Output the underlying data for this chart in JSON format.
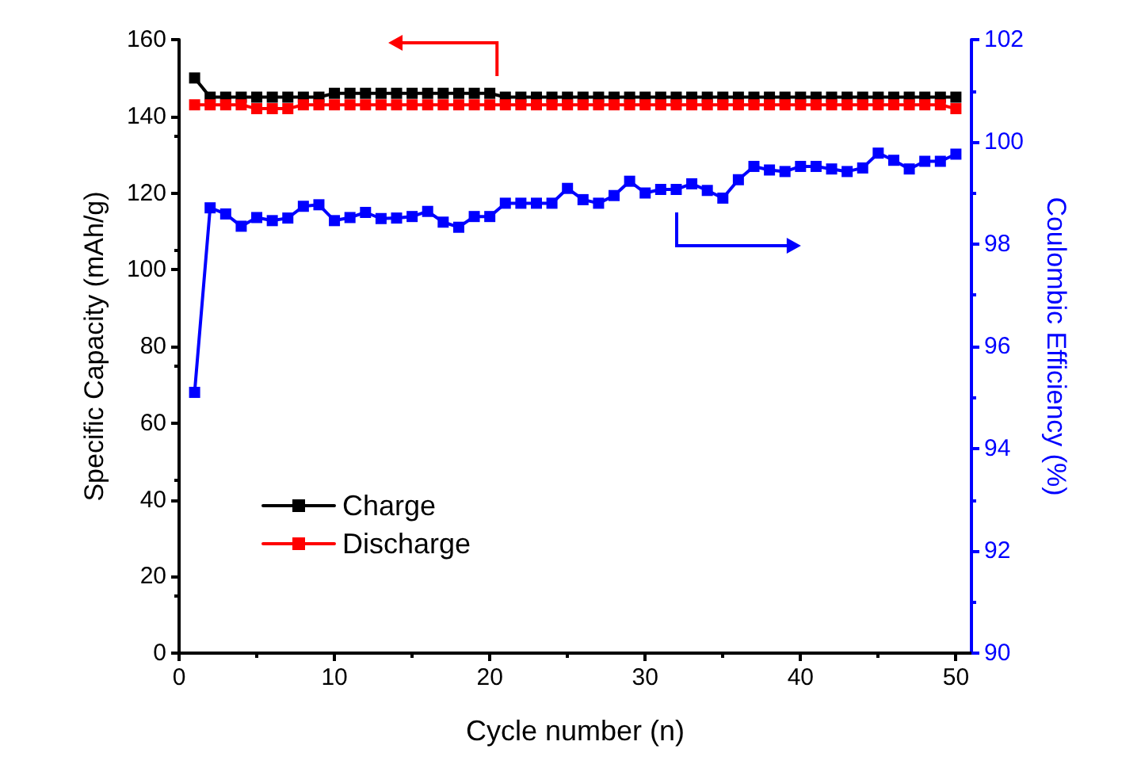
{
  "chart_data": {
    "type": "line",
    "xlabel": "Cycle number (n)",
    "ylabel": "Specific Capacity (mAh/g)",
    "y2label": "Coulombic Efficiency (%)",
    "x": [
      1,
      2,
      3,
      4,
      5,
      6,
      7,
      8,
      9,
      10,
      11,
      12,
      13,
      14,
      15,
      16,
      17,
      18,
      19,
      20,
      21,
      22,
      23,
      24,
      25,
      26,
      27,
      28,
      29,
      30,
      31,
      32,
      33,
      34,
      35,
      36,
      37,
      38,
      39,
      40,
      41,
      42,
      43,
      44,
      45,
      46,
      47,
      48,
      49,
      50
    ],
    "series": [
      {
        "name": "Charge",
        "color": "#000000",
        "values": [
          150,
          145,
          145,
          145,
          145,
          145,
          145,
          145,
          145,
          146,
          146,
          146,
          146,
          146,
          146,
          146,
          146,
          146,
          146,
          146,
          145,
          145,
          145,
          145,
          145,
          145,
          145,
          145,
          145,
          145,
          145,
          145,
          145,
          145,
          145,
          145,
          145,
          145,
          145,
          145,
          145,
          145,
          145,
          145,
          145,
          145,
          145,
          145,
          145,
          145
        ]
      },
      {
        "name": "Discharge",
        "color": "#ff0000",
        "values": [
          143,
          143,
          143,
          143,
          142,
          142,
          142,
          143,
          143,
          143,
          143,
          143,
          143,
          143,
          143,
          143,
          143,
          143,
          143,
          143,
          143,
          143,
          143,
          143,
          143,
          143,
          143,
          143,
          143,
          143,
          143,
          143,
          143,
          143,
          143,
          143,
          143,
          143,
          143,
          143,
          143,
          143,
          143,
          143,
          143,
          143,
          143,
          143,
          143,
          142
        ]
      },
      {
        "color": "#0000ff",
        "axis": "y2",
        "values": [
          95.1,
          98.71,
          98.59,
          98.35,
          98.52,
          98.46,
          98.51,
          98.74,
          98.77,
          98.46,
          98.52,
          98.62,
          98.5,
          98.51,
          98.54,
          98.64,
          98.43,
          98.33,
          98.54,
          98.54,
          98.8,
          98.8,
          98.8,
          98.8,
          99.09,
          98.87,
          98.8,
          98.95,
          99.23,
          99.0,
          99.07,
          99.07,
          99.18,
          99.05,
          98.9,
          99.26,
          99.52,
          99.45,
          99.42,
          99.52,
          99.52,
          99.47,
          99.42,
          99.49,
          99.78,
          99.64,
          99.47,
          99.62,
          99.62,
          99.76
        ]
      }
    ],
    "xlim": [
      0,
      51
    ],
    "xticks": [
      0,
      10,
      20,
      30,
      40,
      50
    ],
    "ylim": [
      0,
      160
    ],
    "yticks": [
      0,
      20,
      40,
      60,
      80,
      100,
      120,
      140,
      160
    ],
    "y2lim": [
      90,
      102
    ],
    "y2ticks": [
      90,
      92,
      94,
      96,
      98,
      100,
      102
    ],
    "marker": "square",
    "line_style": "solid",
    "grid": false,
    "legend": "bottom left"
  }
}
